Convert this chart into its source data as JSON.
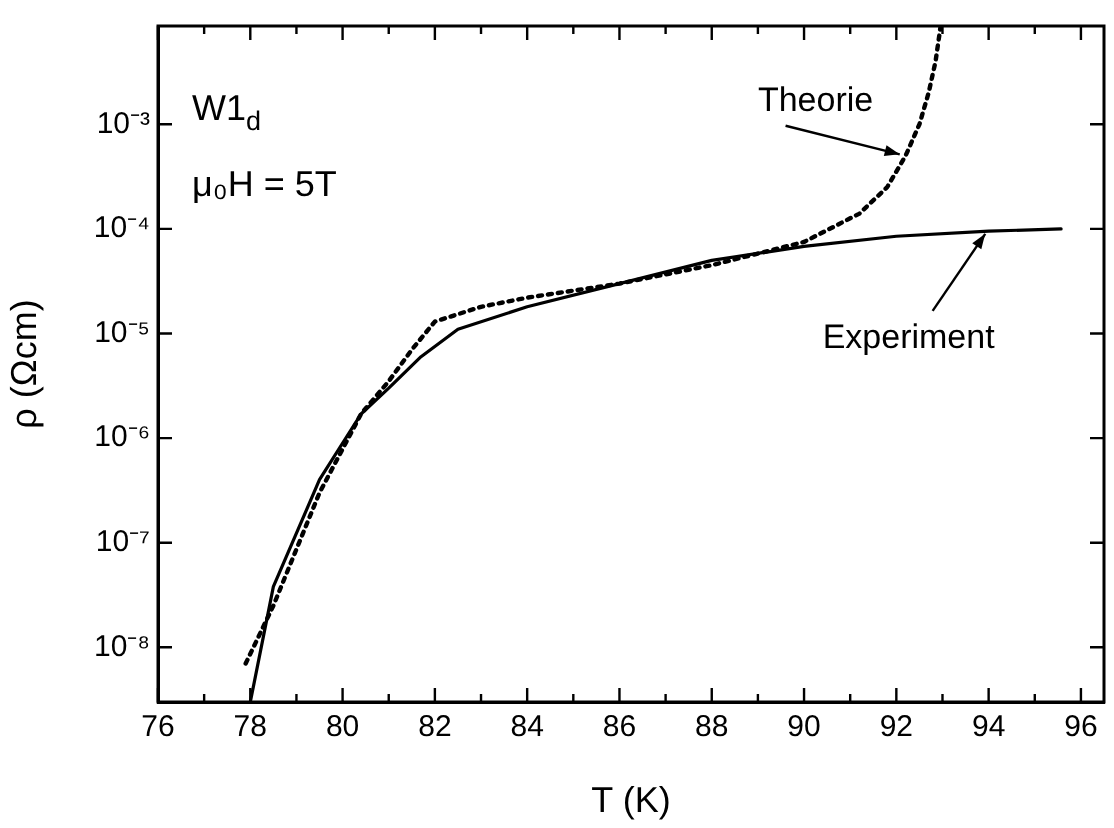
{
  "chart_data": {
    "type": "line",
    "xlabel": "T (K)",
    "ylabel": "ρ (Ωcm)",
    "log": "y",
    "grid": false,
    "legend": false,
    "marker": "none",
    "xlim": [
      76,
      96.5
    ],
    "ylim": [
      3e-09,
      0.0087
    ],
    "xticks": [
      76,
      {
        "value": 77,
        "label": null
      },
      78,
      {
        "value": 79,
        "label": null
      },
      80,
      {
        "value": 81,
        "label": null
      },
      82,
      {
        "value": 83,
        "label": null
      },
      84,
      {
        "value": 85,
        "label": null
      },
      86,
      {
        "value": 87,
        "label": null
      },
      88,
      {
        "value": 89,
        "label": null
      },
      90,
      {
        "value": 91,
        "label": null
      },
      92,
      {
        "value": 93,
        "label": null
      },
      94,
      {
        "value": 95,
        "label": null
      },
      96
    ],
    "yticks": [
      {
        "value": 1e-08,
        "label": "10⁻⁸"
      },
      {
        "value": 1e-07,
        "label": "10⁻⁷"
      },
      {
        "value": 1e-06,
        "label": "10⁻⁶"
      },
      {
        "value": 1e-05,
        "label": "10⁻⁵"
      },
      {
        "value": 0.0001,
        "label": "10⁻⁴"
      },
      {
        "value": 0.001,
        "label": "10⁻³"
      }
    ],
    "series": [
      {
        "color": "#000000",
        "line_style": "dotted",
        "x": [
          77.9,
          78.5,
          79.5,
          80.4,
          81,
          81.5,
          82,
          83,
          84,
          86,
          88,
          90,
          91.2,
          91.8,
          92.2,
          92.5,
          92.7,
          92.85,
          92.96
        ],
        "values": [
          7e-09,
          2.5e-08,
          3e-07,
          1.7e-06,
          3.5e-06,
          7e-06,
          1.3e-05,
          1.8e-05,
          2.2e-05,
          3e-05,
          4.5e-05,
          7.5e-05,
          0.00014,
          0.00025,
          0.0005,
          0.001,
          0.002,
          0.004,
          0.0087
        ]
      },
      {
        "color": "#000000",
        "line_style": "solid",
        "x": [
          78,
          78.5,
          79.5,
          80.4,
          81,
          81.7,
          82.5,
          84,
          86,
          88,
          90,
          92,
          94,
          95.57
        ],
        "values": [
          3e-09,
          3.8e-08,
          4e-07,
          1.7e-06,
          3e-06,
          6e-06,
          1.1e-05,
          1.8e-05,
          3e-05,
          5e-05,
          6.8e-05,
          8.5e-05,
          9.5e-05,
          0.0001
        ]
      }
    ],
    "annotations": [
      "W1$_{d}$",
      "μ₀H = 5T",
      {
        "text": "Theorie",
        "x": 92.2,
        "y": 0.0005
      },
      {
        "text": "Experiment",
        "x": 94,
        "y": 0.0001
      }
    ]
  }
}
